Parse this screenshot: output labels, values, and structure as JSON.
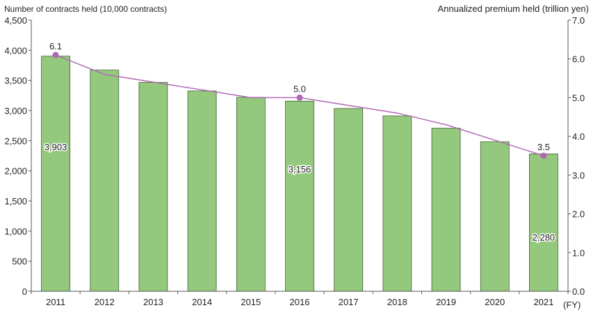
{
  "chart_data": {
    "type": "bar",
    "categories": [
      "2011",
      "2012",
      "2013",
      "2014",
      "2015",
      "2016",
      "2017",
      "2018",
      "2019",
      "2020",
      "2021"
    ],
    "series": [
      {
        "name": "Number of contracts held",
        "axis": "left",
        "type": "bar",
        "values": [
          3903,
          3672,
          3467,
          3325,
          3220,
          3156,
          3034,
          2910,
          2708,
          2482,
          2280
        ],
        "color": "#94c97d",
        "labeled_indices": [
          0,
          5,
          10
        ]
      },
      {
        "name": "Annualized premium held",
        "axis": "right",
        "type": "line",
        "values": [
          6.1,
          5.6,
          5.4,
          5.2,
          5.0,
          5.0,
          4.8,
          4.6,
          4.3,
          3.9,
          3.5
        ],
        "color": "#b06ab3",
        "labeled_indices": [
          0,
          5,
          10
        ]
      }
    ],
    "ylabel": "Number of contracts held (10,000 contracts)",
    "y2label": "Annualized premium held (trillion yen)",
    "xunit": "(FY)",
    "ylim": [
      0,
      4500
    ],
    "y2lim": [
      0,
      7.0
    ],
    "yticks": [
      "0",
      "500",
      "1,000",
      "1,500",
      "2,000",
      "2,500",
      "3,000",
      "3,500",
      "4,000",
      "4,500"
    ],
    "y2ticks": [
      "0.0",
      "1.0",
      "2.0",
      "3.0",
      "4.0",
      "5.0",
      "6.0",
      "7.0"
    ],
    "bar_labels": [
      "3,903",
      "3,156",
      "2,280"
    ],
    "line_labels": [
      "6.1",
      "5.0",
      "3.5"
    ],
    "grid": false
  }
}
